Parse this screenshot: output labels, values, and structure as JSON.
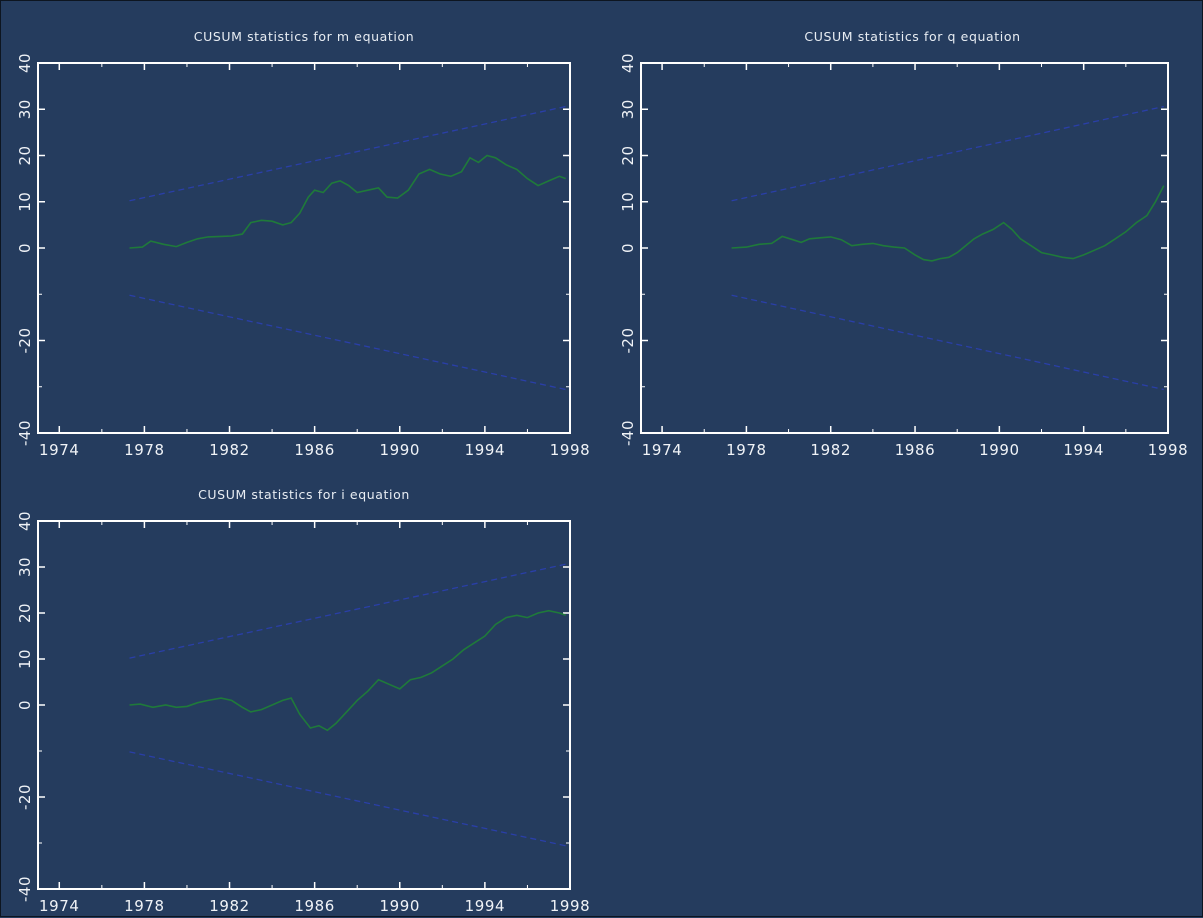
{
  "figure": {
    "colors": {
      "background": "#253c5e",
      "frame": "#ffffff",
      "cusum_line": "#1f7a3a",
      "bound_line": "#2a3fa8"
    }
  },
  "chart_data": [
    {
      "type": "line",
      "title": "CUSUM statistics for m equation",
      "xlabel": "",
      "ylabel": "",
      "xlim": [
        1973,
        1998
      ],
      "ylim": [
        -40,
        40
      ],
      "x_ticks": [
        "1974",
        "1978",
        "1982",
        "1986",
        "1990",
        "1994",
        "1998"
      ],
      "y_ticks": [
        "-40",
        "-20",
        "0",
        "10",
        "20",
        "30",
        "40"
      ],
      "grid": false,
      "series": [
        {
          "role": "cusum",
          "style": "solid",
          "x": [
            1977.3,
            1977.9,
            1978.3,
            1978.9,
            1979.5,
            1980.0,
            1980.5,
            1981.0,
            1981.6,
            1982.1,
            1982.6,
            1983.0,
            1983.5,
            1984.0,
            1984.5,
            1984.9,
            1985.3,
            1985.7,
            1986.0,
            1986.4,
            1986.8,
            1987.2,
            1987.6,
            1988.0,
            1988.5,
            1989.0,
            1989.4,
            1989.9,
            1990.4,
            1990.9,
            1991.4,
            1991.9,
            1992.4,
            1992.9,
            1993.3,
            1993.7,
            1994.1,
            1994.5,
            1995.0,
            1995.5,
            1996.0,
            1996.5,
            1997.0,
            1997.5,
            1997.8
          ],
          "y": [
            0.0,
            0.2,
            1.5,
            0.8,
            0.3,
            1.2,
            2.0,
            2.4,
            2.5,
            2.6,
            3.0,
            5.5,
            6.0,
            5.8,
            5.0,
            5.5,
            7.5,
            11.0,
            12.5,
            12.0,
            14.0,
            14.5,
            13.5,
            12.0,
            12.5,
            13.0,
            11.0,
            10.8,
            12.5,
            16.0,
            17.0,
            16.0,
            15.5,
            16.5,
            19.5,
            18.5,
            20.0,
            19.5,
            18.0,
            17.0,
            15.0,
            13.5,
            14.5,
            15.5,
            15.0
          ]
        },
        {
          "role": "upper-bound",
          "style": "dashed",
          "x": [
            1977.3,
            1997.8
          ],
          "y": [
            10.2,
            30.6
          ]
        },
        {
          "role": "lower-bound",
          "style": "dashed",
          "x": [
            1977.3,
            1997.8
          ],
          "y": [
            -10.2,
            -30.6
          ]
        }
      ]
    },
    {
      "type": "line",
      "title": "CUSUM statistics for q equation",
      "xlabel": "",
      "ylabel": "",
      "xlim": [
        1973,
        1998
      ],
      "ylim": [
        -40,
        40
      ],
      "x_ticks": [
        "1974",
        "1978",
        "1982",
        "1986",
        "1990",
        "1994",
        "1998"
      ],
      "y_ticks": [
        "-40",
        "-20",
        "0",
        "10",
        "20",
        "30",
        "40"
      ],
      "grid": false,
      "series": [
        {
          "role": "cusum",
          "style": "solid",
          "x": [
            1977.3,
            1978.0,
            1978.6,
            1979.2,
            1979.7,
            1980.2,
            1980.6,
            1981.0,
            1981.5,
            1982.0,
            1982.5,
            1983.0,
            1983.5,
            1984.0,
            1984.5,
            1985.0,
            1985.5,
            1986.0,
            1986.4,
            1986.8,
            1987.2,
            1987.6,
            1988.0,
            1988.4,
            1988.8,
            1989.2,
            1989.7,
            1990.2,
            1990.6,
            1991.0,
            1991.5,
            1992.0,
            1992.5,
            1993.0,
            1993.5,
            1994.0,
            1994.5,
            1995.0,
            1995.5,
            1996.0,
            1996.5,
            1997.0,
            1997.4,
            1997.8
          ],
          "y": [
            0.0,
            0.2,
            0.8,
            1.0,
            2.5,
            1.8,
            1.2,
            2.0,
            2.2,
            2.4,
            1.8,
            0.5,
            0.8,
            1.0,
            0.5,
            0.2,
            0.0,
            -1.5,
            -2.5,
            -2.8,
            -2.3,
            -2.0,
            -1.0,
            0.5,
            2.0,
            3.0,
            4.0,
            5.5,
            4.0,
            2.0,
            0.5,
            -1.0,
            -1.5,
            -2.0,
            -2.3,
            -1.5,
            -0.5,
            0.5,
            2.0,
            3.5,
            5.5,
            7.0,
            10.0,
            13.5
          ]
        },
        {
          "role": "upper-bound",
          "style": "dashed",
          "x": [
            1977.3,
            1997.8
          ],
          "y": [
            10.2,
            30.6
          ]
        },
        {
          "role": "lower-bound",
          "style": "dashed",
          "x": [
            1977.3,
            1997.8
          ],
          "y": [
            -10.2,
            -30.6
          ]
        }
      ]
    },
    {
      "type": "line",
      "title": "CUSUM statistics for i equation",
      "xlabel": "",
      "ylabel": "",
      "xlim": [
        1973,
        1998
      ],
      "ylim": [
        -40,
        40
      ],
      "x_ticks": [
        "1974",
        "1978",
        "1982",
        "1986",
        "1990",
        "1994",
        "1998"
      ],
      "y_ticks": [
        "-40",
        "-20",
        "0",
        "10",
        "20",
        "30",
        "40"
      ],
      "grid": false,
      "series": [
        {
          "role": "cusum",
          "style": "solid",
          "x": [
            1977.3,
            1977.8,
            1978.4,
            1979.0,
            1979.5,
            1980.0,
            1980.5,
            1981.0,
            1981.6,
            1982.1,
            1982.6,
            1983.0,
            1983.5,
            1984.0,
            1984.5,
            1984.9,
            1985.3,
            1985.8,
            1986.2,
            1986.6,
            1987.0,
            1987.5,
            1988.0,
            1988.5,
            1989.0,
            1989.5,
            1990.0,
            1990.5,
            1991.0,
            1991.5,
            1992.0,
            1992.5,
            1993.0,
            1993.5,
            1994.0,
            1994.5,
            1995.0,
            1995.5,
            1996.0,
            1996.5,
            1997.0,
            1997.5,
            1997.8
          ],
          "y": [
            0.0,
            0.2,
            -0.5,
            0.0,
            -0.5,
            -0.3,
            0.5,
            1.0,
            1.5,
            1.0,
            -0.5,
            -1.5,
            -1.0,
            0.0,
            1.0,
            1.5,
            -2.0,
            -5.0,
            -4.5,
            -5.5,
            -4.0,
            -1.5,
            1.0,
            3.0,
            5.5,
            4.5,
            3.5,
            5.5,
            6.0,
            7.0,
            8.5,
            10.0,
            12.0,
            13.5,
            15.0,
            17.5,
            19.0,
            19.5,
            19.0,
            20.0,
            20.5,
            20.0,
            19.5
          ]
        },
        {
          "role": "upper-bound",
          "style": "dashed",
          "x": [
            1977.3,
            1997.8
          ],
          "y": [
            10.2,
            30.6
          ]
        },
        {
          "role": "lower-bound",
          "style": "dashed",
          "x": [
            1977.3,
            1997.8
          ],
          "y": [
            -10.2,
            -30.6
          ]
        }
      ]
    }
  ]
}
